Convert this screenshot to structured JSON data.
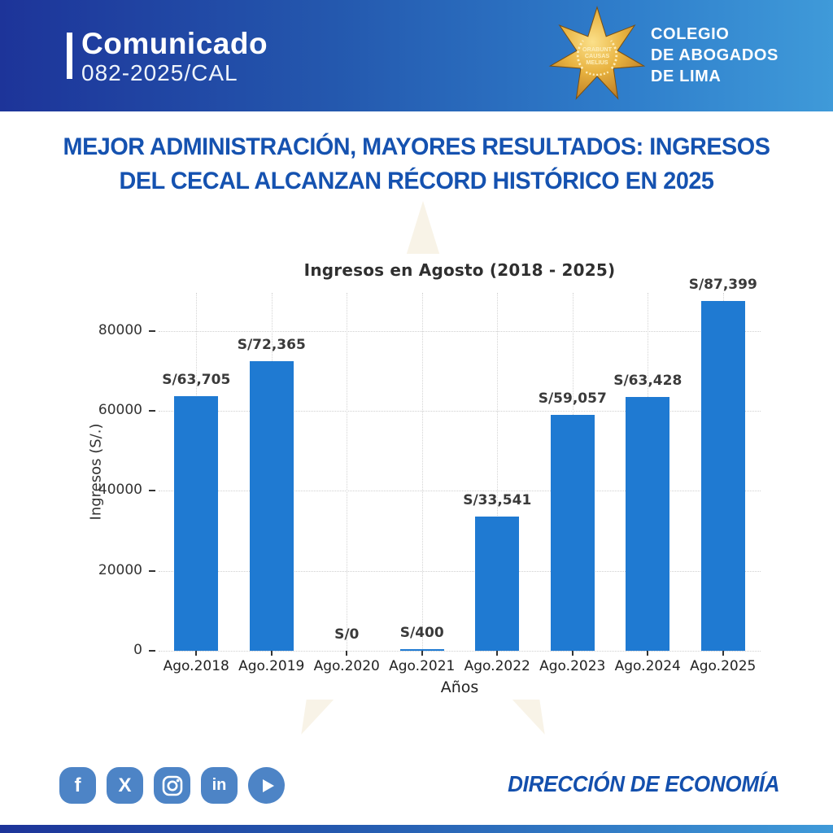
{
  "banner": {
    "kicker": "Comunicado",
    "code": "082-2025/CAL",
    "org_lines": [
      "COLEGIO",
      "DE ABOGADOS",
      "DE LIMA"
    ],
    "logo_motto_lines": [
      "ORABUNT",
      "CAUSAS",
      "MELIUS"
    ],
    "colors": {
      "gradient_left": "#1d3499",
      "gradient_right": "#3f9ad9"
    }
  },
  "headline": {
    "lines": [
      "MEJOR ADMINISTRACIÓN, MAYORES RESULTADOS: INGRESOS",
      "DEL CECAL ALCANZAN RÉCORD HISTÓRICO EN 2025"
    ],
    "color": "#1552b0"
  },
  "chart_data": {
    "type": "bar",
    "title": "Ingresos en Agosto (2018 - 2025)",
    "xlabel": "Años",
    "ylabel": "Ingresos (S/.)",
    "categories": [
      "Ago.2018",
      "Ago.2019",
      "Ago.2020",
      "Ago.2021",
      "Ago.2022",
      "Ago.2023",
      "Ago.2024",
      "Ago.2025"
    ],
    "values": [
      63705,
      72365,
      0,
      400,
      33541,
      59057,
      63428,
      87399
    ],
    "bar_labels": [
      "S/63,705",
      "S/72,365",
      "S/0",
      "S/400",
      "S/33,541",
      "S/59,057",
      "S/63,428",
      "S/87,399"
    ],
    "yticks": [
      0,
      20000,
      40000,
      60000,
      80000
    ],
    "ylim": [
      0,
      89500
    ],
    "bar_color": "#1f7ad2",
    "grid": "dotted, horizontal and vertical at category centers",
    "legend": "none"
  },
  "footer": {
    "icons": [
      {
        "name": "facebook-icon",
        "glyph": "f"
      },
      {
        "name": "x-icon",
        "glyph": "X"
      },
      {
        "name": "instagram-icon",
        "glyph": ""
      },
      {
        "name": "linkedin-icon",
        "glyph": "in"
      },
      {
        "name": "play-icon",
        "glyph": ""
      }
    ],
    "icon_color": "#4d84c6",
    "department": "DIRECCIÓN DE ECONOMÍA",
    "department_color": "#1450ad"
  }
}
